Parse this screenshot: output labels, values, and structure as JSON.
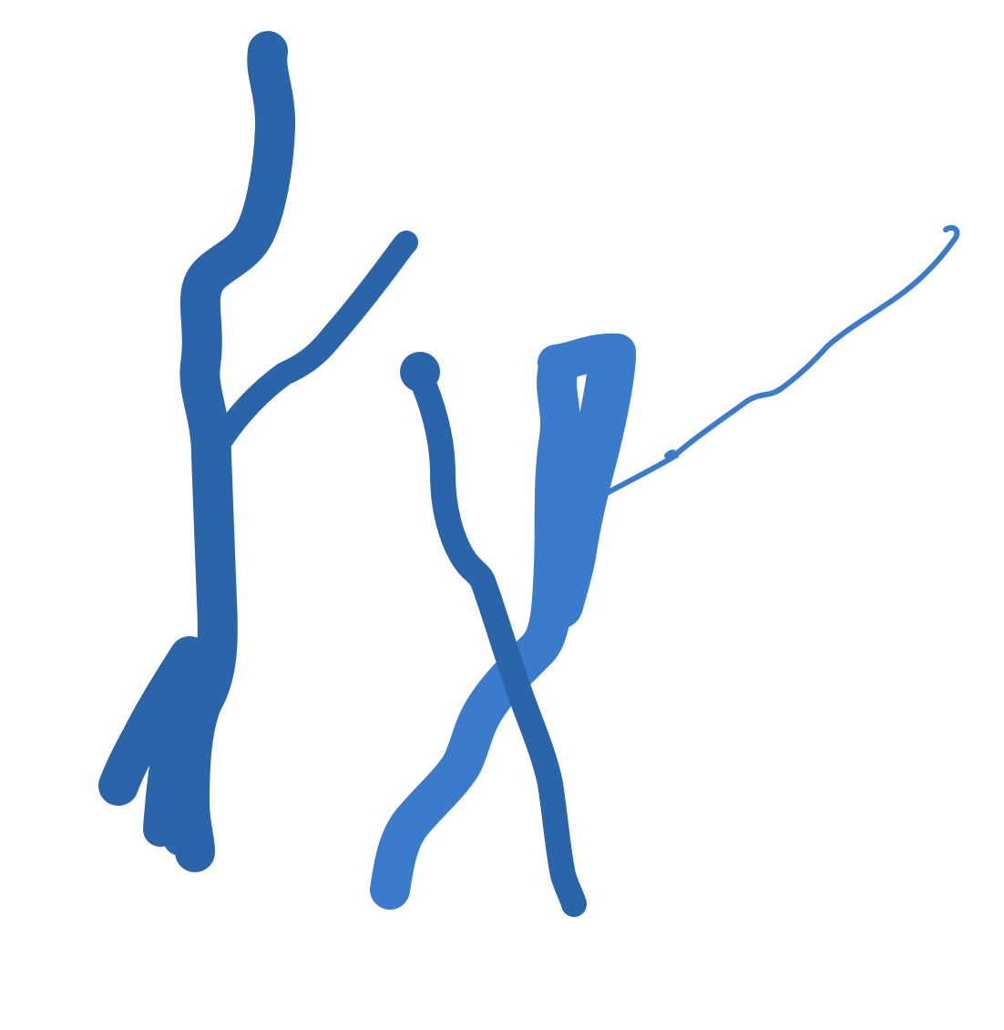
{
  "drawing": {
    "background": "#ffffff",
    "strokes": [
      {
        "name": "left-figure-trunk",
        "color": "#2a64a9",
        "weight": "thick"
      },
      {
        "name": "left-figure-branch",
        "color": "#2a64a9",
        "weight": "medium"
      },
      {
        "name": "left-figure-foot",
        "color": "#2a64a9",
        "weight": "thick"
      },
      {
        "name": "right-figure-light-body",
        "color": "#3a7ccb",
        "weight": "thick"
      },
      {
        "name": "right-figure-light-arm",
        "color": "#3a7ccb",
        "weight": "thin"
      },
      {
        "name": "right-figure-dark-diagonal",
        "color": "#2a64a9",
        "weight": "medium"
      }
    ]
  }
}
